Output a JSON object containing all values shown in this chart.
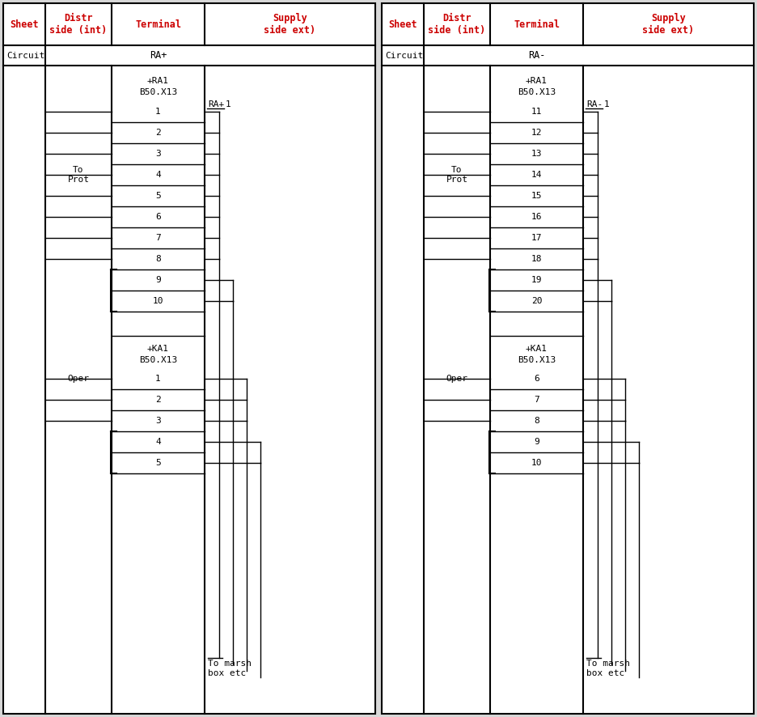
{
  "bg_color": "#d8d8d8",
  "white": "#ffffff",
  "black": "#000000",
  "red": "#cc0000",
  "panel_left": {
    "circuit": "RA+",
    "supply_label": "RA+",
    "g1_header1": "+RA1",
    "g1_header2": "B50.X13",
    "g1_terms": [
      "1",
      "2",
      "3",
      "4",
      "5",
      "6",
      "7",
      "8",
      "9",
      "10"
    ],
    "g2_header1": "+KA1",
    "g2_header2": "B50.X13",
    "g2_terms": [
      "1",
      "2",
      "3",
      "4",
      "5"
    ]
  },
  "panel_right": {
    "circuit": "RA-",
    "supply_label": "RA-",
    "g1_header1": "+RA1",
    "g1_header2": "B50.X13",
    "g1_terms": [
      "11",
      "12",
      "13",
      "14",
      "15",
      "16",
      "17",
      "18",
      "19",
      "20"
    ],
    "g2_header1": "+KA1",
    "g2_header2": "B50.X13",
    "g2_terms": [
      "6",
      "7",
      "8",
      "9",
      "10"
    ]
  },
  "col_headers": [
    "Sheet",
    "Distr\nside (int)",
    "Terminal",
    "Supply\nside ext)"
  ]
}
